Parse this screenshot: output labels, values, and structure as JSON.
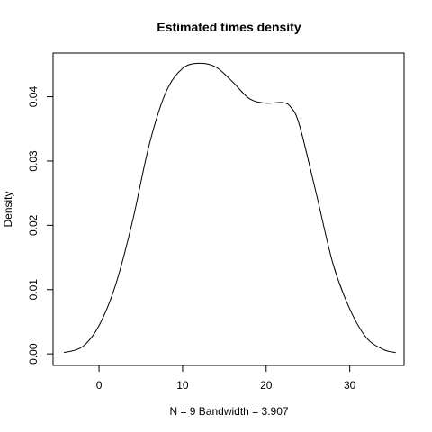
{
  "chart_data": {
    "type": "line",
    "title": "Estimated times density",
    "xlabel": "N = 9   Bandwidth = 3.907",
    "ylabel": "Density",
    "xlim": [
      -5.5,
      36.5
    ],
    "ylim": [
      -0.0018,
      0.0468
    ],
    "grid": false,
    "xticks": [
      0,
      10,
      20,
      30
    ],
    "yticks": [
      0.0,
      0.01,
      0.02,
      0.03,
      0.04
    ],
    "xtick_labels": [
      "0",
      "10",
      "20",
      "30"
    ],
    "ytick_labels": [
      "0.00",
      "0.01",
      "0.02",
      "0.03",
      "0.04"
    ],
    "series": [
      {
        "color": "#000000",
        "x": [
          -4.2,
          -2,
          0,
          2,
          4,
          6,
          8,
          10,
          12,
          14,
          16,
          18,
          20,
          22,
          23,
          24,
          26,
          28,
          30,
          32,
          34,
          35.5
        ],
        "y": [
          0.0002,
          0.0011,
          0.0044,
          0.0108,
          0.0206,
          0.0325,
          0.0407,
          0.0444,
          0.0452,
          0.0446,
          0.0423,
          0.0397,
          0.039,
          0.0391,
          0.0383,
          0.0355,
          0.0249,
          0.014,
          0.007,
          0.0025,
          0.0007,
          0.0002
        ]
      }
    ]
  }
}
